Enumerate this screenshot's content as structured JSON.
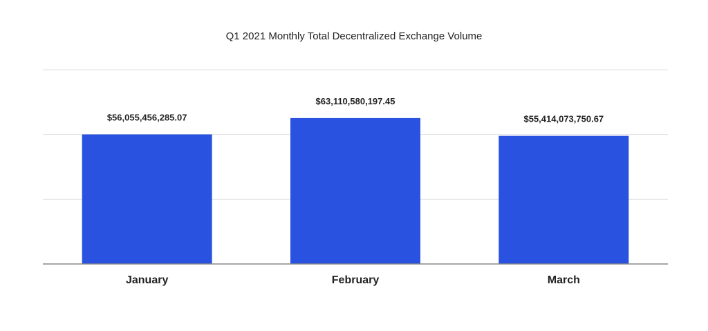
{
  "chart_data": {
    "type": "bar",
    "title": "Q1 2021 Monthly Total Decentralized Exchange Volume",
    "xlabel": "",
    "ylabel": "",
    "categories": [
      "January",
      "February",
      "March"
    ],
    "values": [
      56055456285.07,
      63110580197.45,
      55414073750.67
    ],
    "value_labels": [
      "$56,055,456,285.07",
      "$63,110,580,197.45",
      "$55,414,073,750.67"
    ],
    "ylim": [
      0,
      84000000000
    ],
    "gridlines": [
      28000000000,
      56000000000,
      84000000000
    ],
    "grid": true,
    "legend": "none",
    "bar_color": "#2a52e0",
    "grid_color": "#e0e0e0",
    "axis_color": "#888888"
  }
}
